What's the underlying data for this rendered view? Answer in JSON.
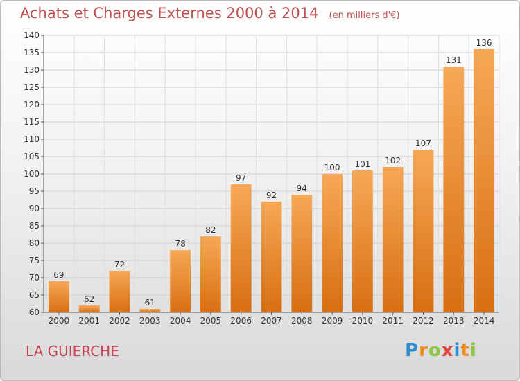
{
  "title": "Achats et Charges Externes 2000 à 2014",
  "subtitle": "(en milliers d'€)",
  "place": "LA GUIERCHE",
  "logo": {
    "letters": [
      {
        "ch": "P",
        "color": "#2f8fd0"
      },
      {
        "ch": "r",
        "color": "#f08a1c"
      },
      {
        "ch": "o",
        "color": "#8cc63f"
      },
      {
        "ch": "x",
        "color": "#e8423c"
      },
      {
        "ch": "i",
        "color": "#2f8fd0"
      },
      {
        "ch": "t",
        "color": "#f08a1c"
      },
      {
        "ch": "i",
        "color": "#8cc63f"
      }
    ]
  },
  "chart_data": {
    "type": "bar",
    "categories": [
      "2000",
      "2001",
      "2002",
      "2003",
      "2004",
      "2005",
      "2006",
      "2007",
      "2008",
      "2009",
      "2010",
      "2011",
      "2012",
      "2013",
      "2014"
    ],
    "values": [
      69,
      62,
      72,
      61,
      78,
      82,
      97,
      92,
      94,
      100,
      101,
      102,
      107,
      131,
      136
    ],
    "title": "Achats et Charges Externes 2000 à 2014",
    "subtitle": "(en milliers d'€)",
    "ylim": [
      60,
      140
    ],
    "yticks": [
      60,
      65,
      70,
      75,
      80,
      85,
      90,
      95,
      100,
      105,
      110,
      115,
      120,
      125,
      130,
      135,
      140
    ],
    "grid": true,
    "bar_color": "#f0902e",
    "data_labels": true
  }
}
